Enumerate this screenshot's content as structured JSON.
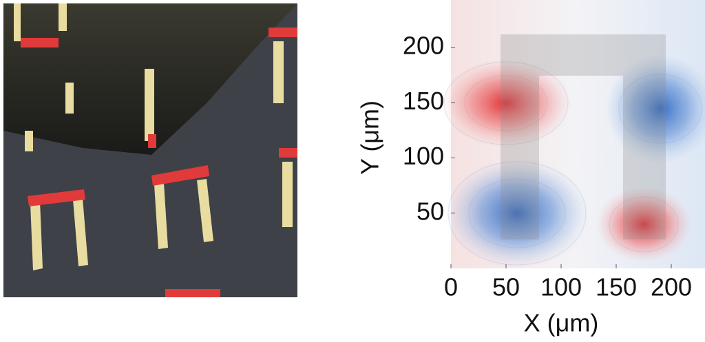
{
  "chart_data": {
    "type": "contour",
    "xlabel": "X (μm)",
    "ylabel": "Y (μm)",
    "xlim": [
      0,
      230
    ],
    "ylim": [
      0,
      243
    ],
    "xticks": [
      0,
      50,
      100,
      150,
      200
    ],
    "yticks": [
      50,
      100,
      150,
      200
    ]
  }
}
